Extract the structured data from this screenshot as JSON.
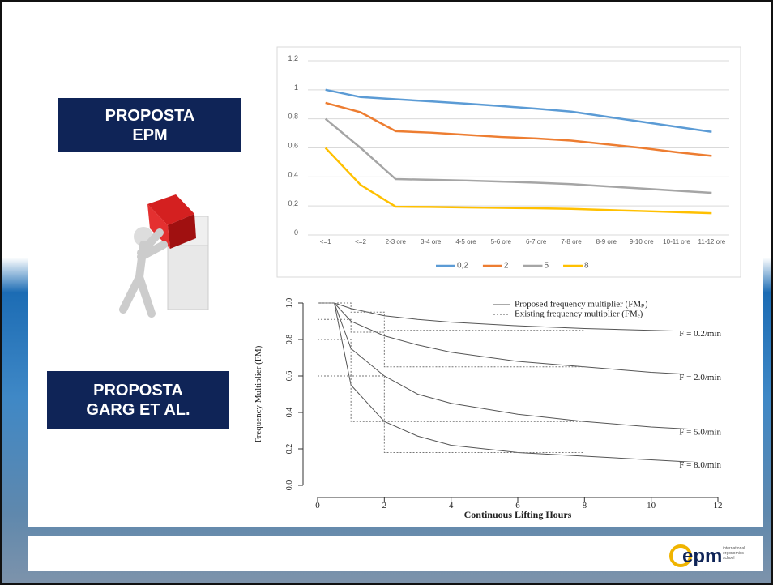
{
  "slide": {
    "labels": [
      "PROPOSTA\nEPM",
      "PROPOSTA\nGARG ET AL."
    ],
    "logo": {
      "text": "epm",
      "subtext": [
        "international",
        "ergonomics",
        "school"
      ]
    }
  },
  "chart_data": [
    {
      "type": "line",
      "categories": [
        "<=1",
        "<=2",
        "2-3 ore",
        "3-4 ore",
        "4-5 ore",
        "5-6 ore",
        "6-7 ore",
        "7-8 ore",
        "8-9 ore",
        "9-10 ore",
        "10-11 ore",
        "11-12 ore"
      ],
      "series": [
        {
          "name": "0,2",
          "color": "#5b9bd5",
          "values": [
            1,
            0.95,
            0.935,
            0.92,
            0.905,
            0.888,
            0.87,
            0.85,
            0.815,
            0.78,
            0.745,
            0.71
          ]
        },
        {
          "name": "2",
          "color": "#ed7d31",
          "values": [
            0.91,
            0.845,
            0.715,
            0.705,
            0.69,
            0.675,
            0.665,
            0.65,
            0.625,
            0.6,
            0.57,
            0.545
          ]
        },
        {
          "name": "5",
          "color": "#a5a5a5",
          "values": [
            0.8,
            0.6,
            0.385,
            0.38,
            0.375,
            0.368,
            0.36,
            0.35,
            0.335,
            0.32,
            0.305,
            0.29
          ]
        },
        {
          "name": "8",
          "color": "#ffc000",
          "values": [
            0.6,
            0.345,
            0.195,
            0.193,
            0.19,
            0.187,
            0.184,
            0.18,
            0.172,
            0.165,
            0.158,
            0.15
          ]
        }
      ],
      "ylim": [
        0,
        1.2
      ],
      "yticks": [
        0,
        {
          "value": 0.2,
          "label": "0,2"
        },
        {
          "value": 0.4,
          "label": "0,4"
        },
        {
          "value": 0.6,
          "label": "0,6"
        },
        {
          "value": 0.8,
          "label": "0,8"
        },
        1,
        {
          "value": 1.2,
          "label": "1,2"
        }
      ],
      "grid": true,
      "legend": "bottom"
    },
    {
      "type": "line",
      "xlabel": "Continuous Lifting Hours",
      "ylabel": "Frequency Multiplier (FM)",
      "legend_entries": [
        {
          "label": "Proposed frequency multiplier (FMₚ)",
          "style": "solid"
        },
        {
          "label": "Existing frequency multiplier (FMₑ)",
          "style": "dotted"
        }
      ],
      "legend": "top-right",
      "series": [
        {
          "name": "F = 0.2/min",
          "color": "#555555",
          "style": "solid",
          "x": [
            0,
            0.5,
            1,
            2,
            3,
            4,
            6,
            8,
            10,
            12
          ],
          "values": [
            1,
            1,
            0.97,
            0.93,
            0.91,
            0.895,
            0.875,
            0.86,
            0.85,
            0.84
          ]
        },
        {
          "name": "F = 2.0/min",
          "color": "#555555",
          "style": "solid",
          "x": [
            0,
            0.5,
            1,
            2,
            3,
            4,
            6,
            8,
            10,
            12
          ],
          "values": [
            1,
            1,
            0.9,
            0.82,
            0.77,
            0.73,
            0.68,
            0.65,
            0.62,
            0.6
          ]
        },
        {
          "name": "F = 5.0/min",
          "color": "#555555",
          "style": "solid",
          "x": [
            0,
            0.5,
            1,
            2,
            3,
            4,
            6,
            8,
            10,
            12
          ],
          "values": [
            1,
            1,
            0.75,
            0.6,
            0.5,
            0.45,
            0.39,
            0.35,
            0.32,
            0.3
          ]
        },
        {
          "name": "F = 8.0/min",
          "color": "#555555",
          "style": "solid",
          "x": [
            0,
            0.5,
            1,
            2,
            3,
            4,
            6,
            8,
            10,
            12
          ],
          "values": [
            1,
            1,
            0.55,
            0.35,
            0.27,
            0.22,
            0.18,
            0.16,
            0.14,
            0.12
          ]
        },
        {
          "color": "#777777",
          "style": "dotted",
          "x": [
            0,
            1,
            1,
            2,
            2,
            8
          ],
          "values": [
            1,
            1,
            0.95,
            0.95,
            0.85,
            0.85
          ]
        },
        {
          "color": "#777777",
          "style": "dotted",
          "x": [
            0,
            1,
            1,
            2,
            2,
            8
          ],
          "values": [
            0.91,
            0.91,
            0.84,
            0.84,
            0.65,
            0.65
          ]
        },
        {
          "color": "#777777",
          "style": "dotted",
          "x": [
            0,
            1,
            1,
            2,
            2,
            8
          ],
          "values": [
            0.8,
            0.8,
            0.6,
            0.6,
            0.35,
            0.35
          ]
        },
        {
          "color": "#777777",
          "style": "dotted",
          "x": [
            0,
            1,
            1,
            2,
            2,
            8
          ],
          "values": [
            0.6,
            0.6,
            0.35,
            0.35,
            0.18,
            0.18
          ]
        }
      ],
      "xlim": [
        0,
        12
      ],
      "xticks": [
        0,
        2,
        4,
        6,
        8,
        10,
        12
      ],
      "ylim": [
        0,
        1
      ],
      "yticks": [
        {
          "value": 0,
          "label": "0.0"
        },
        0.2,
        0.4,
        0.6,
        0.8,
        {
          "value": 1,
          "label": "1.0"
        }
      ]
    }
  ]
}
